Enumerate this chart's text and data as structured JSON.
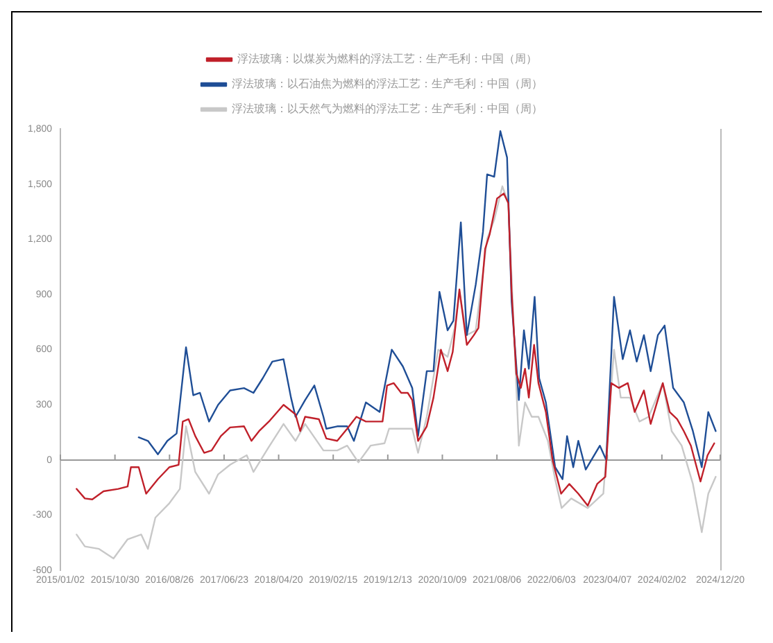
{
  "chart_data": {
    "type": "line",
    "xlim": [
      "2015-01-02",
      "2024-12-20"
    ],
    "xticks": [
      {
        "value": "2015-01-02",
        "label": "2015/01/02"
      },
      {
        "value": "2015-10-30",
        "label": "2015/10/30"
      },
      {
        "value": "2016-08-26",
        "label": "2016/08/26"
      },
      {
        "value": "2017-06-23",
        "label": "2017/06/23"
      },
      {
        "value": "2018-04-20",
        "label": "2018/04/20"
      },
      {
        "value": "2019-02-15",
        "label": "2019/02/15"
      },
      {
        "value": "2019-12-13",
        "label": "2019/12/13"
      },
      {
        "value": "2020-10-09",
        "label": "2020/10/09"
      },
      {
        "value": "2021-08-06",
        "label": "2021/08/06"
      },
      {
        "value": "2022-06-03",
        "label": "2022/06/03"
      },
      {
        "value": "2023-04-07",
        "label": "2023/04/07"
      },
      {
        "value": "2024-02-02",
        "label": "2024/02/02"
      },
      {
        "value": "2024-12-20",
        "label": "2024/12/20"
      }
    ],
    "ylim": [
      -600,
      1800
    ],
    "yticks": [
      -600,
      -300,
      0,
      300,
      600,
      900,
      {
        "value": 1200,
        "label": "1,200"
      },
      {
        "value": 1500,
        "label": "1,500"
      },
      {
        "value": 1800,
        "label": "1,800"
      }
    ],
    "ref_lines": [
      {
        "axis": "y",
        "value": 0,
        "color": "#999999"
      }
    ],
    "legend": "top",
    "grid": false,
    "marker": "none",
    "line_style": "solid",
    "series": [
      {
        "name": "浮法玻璃：以煤炭为燃料的浮法工艺：生产毛利：中国（周）",
        "color": "#c0202a",
        "x": [
          "2015-04-01",
          "2015-05-17",
          "2015-06-27",
          "2015-08-28",
          "2015-11-17",
          "2016-01-08",
          "2016-01-26",
          "2016-03-09",
          "2016-04-19",
          "2016-06-23",
          "2016-08-25",
          "2016-10-15",
          "2016-11-07",
          "2016-12-09",
          "2017-01-15",
          "2017-03-05",
          "2017-04-15",
          "2017-06-05",
          "2017-07-26",
          "2017-10-11",
          "2017-11-21",
          "2018-01-02",
          "2018-03-02",
          "2018-05-17",
          "2018-07-22",
          "2018-08-17",
          "2018-09-13",
          "2018-11-28",
          "2019-01-08",
          "2019-03-09",
          "2019-05-03",
          "2019-06-23",
          "2019-08-14",
          "2019-11-14",
          "2019-12-09",
          "2020-01-15",
          "2020-02-25",
          "2020-04-01",
          "2020-04-26",
          "2020-05-28",
          "2020-07-15",
          "2020-08-21",
          "2020-10-01",
          "2020-11-07",
          "2020-12-05",
          "2021-01-11",
          "2021-02-21",
          "2021-04-01",
          "2021-04-26",
          "2021-06-02",
          "2021-06-27",
          "2021-08-07",
          "2021-09-13",
          "2021-10-08",
          "2021-10-26",
          "2021-11-21",
          "2021-12-16",
          "2022-01-08",
          "2022-01-29",
          "2022-02-27",
          "2022-03-23",
          "2022-05-03",
          "2022-06-09",
          "2022-07-26",
          "2022-09-09",
          "2022-10-29",
          "2022-12-20",
          "2023-02-10",
          "2023-03-27",
          "2023-04-29",
          "2023-06-09",
          "2023-07-29",
          "2023-09-05",
          "2023-10-26",
          "2023-12-02",
          "2024-02-07",
          "2024-03-16",
          "2024-04-26",
          "2024-06-02",
          "2024-07-11",
          "2024-09-02",
          "2024-10-11",
          "2024-11-17"
        ],
        "values": [
          -157,
          -209,
          -214,
          -170,
          -157,
          -144,
          -39,
          -39,
          -183,
          -104,
          -39,
          -26,
          209,
          222,
          130,
          39,
          52,
          130,
          177,
          183,
          104,
          157,
          214,
          300,
          248,
          157,
          235,
          222,
          117,
          104,
          170,
          235,
          209,
          209,
          405,
          418,
          365,
          365,
          326,
          104,
          183,
          339,
          600,
          483,
          587,
          927,
          626,
          679,
          718,
          1148,
          1227,
          1422,
          1449,
          1396,
          914,
          470,
          392,
          496,
          339,
          626,
          418,
          261,
          0,
          -183,
          -130,
          -183,
          -248,
          -130,
          -91,
          418,
          392,
          418,
          261,
          378,
          196,
          418,
          261,
          222,
          157,
          78,
          -117,
          26,
          91
        ]
      },
      {
        "name": "浮法玻璃：以石油焦为燃料的浮法工艺：生产毛利：中国（周）",
        "color": "#1f4e96",
        "x": [
          "2016-03-09",
          "2016-04-29",
          "2016-06-23",
          "2016-08-14",
          "2016-10-04",
          "2016-11-25",
          "2017-01-04",
          "2017-02-10",
          "2017-04-01",
          "2017-05-21",
          "2017-07-26",
          "2017-10-11",
          "2017-12-02",
          "2018-01-22",
          "2018-03-16",
          "2018-05-17",
          "2018-06-27",
          "2018-07-22",
          "2018-09-13",
          "2018-11-03",
          "2018-12-23",
          "2019-01-08",
          "2019-03-09",
          "2019-05-03",
          "2019-06-09",
          "2019-08-14",
          "2019-10-29",
          "2020-01-04",
          "2020-03-05",
          "2020-04-26",
          "2020-05-28",
          "2020-07-15",
          "2020-08-21",
          "2020-09-23",
          "2020-11-07",
          "2020-12-09",
          "2021-01-19",
          "2021-02-21",
          "2021-04-11",
          "2021-05-21",
          "2021-06-13",
          "2021-07-22",
          "2021-08-25",
          "2021-10-01",
          "2021-10-26",
          "2021-12-05",
          "2022-01-02",
          "2022-01-29",
          "2022-03-02",
          "2022-03-27",
          "2022-05-03",
          "2022-06-23",
          "2022-08-03",
          "2022-08-28",
          "2022-10-01",
          "2022-10-29",
          "2022-12-09",
          "2023-02-25",
          "2023-04-01",
          "2023-05-14",
          "2023-07-01",
          "2023-08-10",
          "2023-09-16",
          "2023-10-26",
          "2023-12-02",
          "2024-01-11",
          "2024-02-17",
          "2024-04-04",
          "2024-06-02",
          "2024-07-22",
          "2024-09-09",
          "2024-10-15",
          "2024-11-25"
        ],
        "values": [
          123,
          104,
          31,
          104,
          144,
          613,
          352,
          365,
          209,
          300,
          378,
          391,
          365,
          444,
          535,
          548,
          339,
          235,
          326,
          405,
          235,
          170,
          183,
          183,
          104,
          313,
          261,
          600,
          509,
          391,
          130,
          483,
          483,
          914,
          705,
          757,
          1292,
          679,
          953,
          1240,
          1553,
          1540,
          1788,
          1644,
          861,
          326,
          705,
          496,
          887,
          444,
          313,
          -39,
          -104,
          130,
          -39,
          104,
          -52,
          78,
          0,
          887,
          548,
          705,
          535,
          679,
          483,
          679,
          731,
          392,
          313,
          157,
          -39,
          261,
          157
        ]
      },
      {
        "name": "浮法玻璃：以天然气为燃料的浮法工艺：生产毛利：中国（周）",
        "color": "#c8c8c8",
        "x": [
          "2015-04-01",
          "2015-05-17",
          "2015-08-03",
          "2015-10-22",
          "2016-01-08",
          "2016-03-23",
          "2016-04-29",
          "2016-06-09",
          "2016-08-25",
          "2016-10-22",
          "2016-11-25",
          "2017-01-15",
          "2017-04-01",
          "2017-05-21",
          "2017-07-26",
          "2017-10-26",
          "2017-12-02",
          "2018-02-21",
          "2018-05-17",
          "2018-07-22",
          "2018-09-13",
          "2018-12-23",
          "2019-03-09",
          "2019-05-03",
          "2019-07-04",
          "2019-09-09",
          "2019-11-25",
          "2019-12-20",
          "2020-04-26",
          "2020-05-28",
          "2020-07-15",
          "2020-09-16",
          "2020-11-07",
          "2020-12-16",
          "2021-01-11",
          "2021-02-21",
          "2021-04-11",
          "2021-06-13",
          "2021-07-22",
          "2021-09-05",
          "2021-10-08",
          "2021-11-03",
          "2021-12-05",
          "2022-01-08",
          "2022-02-14",
          "2022-03-23",
          "2022-05-14",
          "2022-06-23",
          "2022-07-29",
          "2022-09-20",
          "2022-12-20",
          "2023-03-16",
          "2023-05-14",
          "2023-06-20",
          "2023-08-10",
          "2023-10-01",
          "2023-11-21",
          "2024-02-07",
          "2024-03-27",
          "2024-05-21",
          "2024-07-22",
          "2024-09-09",
          "2024-10-15",
          "2024-11-25"
        ],
        "values": [
          -405,
          -470,
          -483,
          -535,
          -431,
          -405,
          -483,
          -313,
          -235,
          -157,
          183,
          -65,
          -183,
          -78,
          -26,
          26,
          -65,
          65,
          196,
          104,
          196,
          52,
          52,
          78,
          -13,
          78,
          91,
          170,
          170,
          39,
          235,
          600,
          561,
          718,
          914,
          679,
          705,
          1201,
          1305,
          1488,
          1396,
          809,
          78,
          313,
          235,
          235,
          104,
          -104,
          -261,
          -209,
          -261,
          -183,
          600,
          339,
          339,
          209,
          235,
          418,
          157,
          78,
          -130,
          -392,
          -183,
          -91
        ]
      }
    ]
  }
}
